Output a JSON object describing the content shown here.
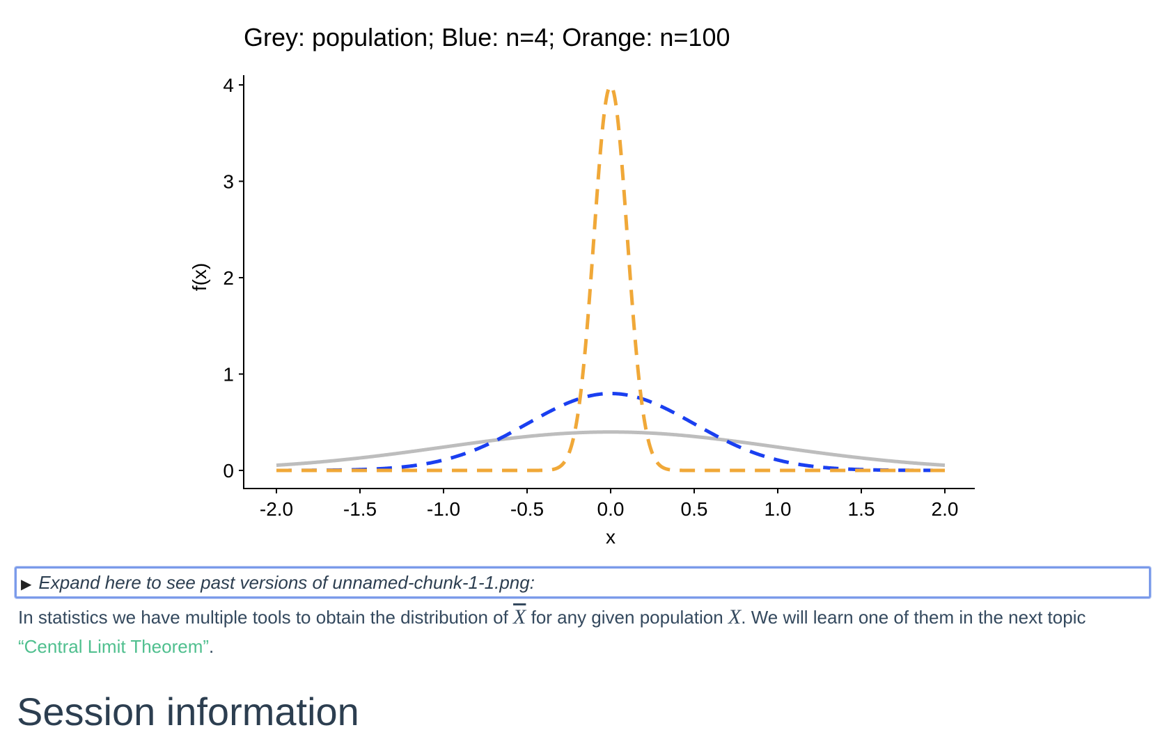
{
  "chart_data": {
    "type": "line",
    "title": "Grey: population; Blue: n=4; Orange: n=100",
    "xlabel": "x",
    "ylabel": "f(x)",
    "xlim": [
      -2.0,
      2.0
    ],
    "ylim": [
      0,
      4
    ],
    "x_ticks": [
      "-2.0",
      "-1.5",
      "-1.0",
      "-0.5",
      "0.0",
      "0.5",
      "1.0",
      "1.5",
      "2.0"
    ],
    "y_ticks": [
      "0",
      "1",
      "2",
      "3",
      "4"
    ],
    "series": [
      {
        "name": "population",
        "color": "#bdbdbd",
        "style": "solid",
        "distribution": "normal",
        "mean": 0,
        "sd": 1,
        "peak": 0.399
      },
      {
        "name": "n=4",
        "color": "#1a3ff0",
        "style": "dashed",
        "distribution": "normal",
        "mean": 0,
        "sd": 0.5,
        "peak": 0.798
      },
      {
        "name": "n=100",
        "color": "#f0a838",
        "style": "dashed",
        "distribution": "normal",
        "mean": 0,
        "sd": 0.1,
        "peak": 3.989
      }
    ]
  },
  "details": {
    "marker": "▶",
    "summary": "Expand here to see past versions of unnamed-chunk-1-1.png:"
  },
  "paragraph": {
    "part1": "In statistics we have multiple tools to obtain the distribution of ",
    "xbar": "X",
    "part2": " for any given population ",
    "x": "X",
    "part3": ". We will learn one of them in the next topic ",
    "link": "“Central Limit Theorem”",
    "part4": "."
  },
  "heading": "Session information"
}
